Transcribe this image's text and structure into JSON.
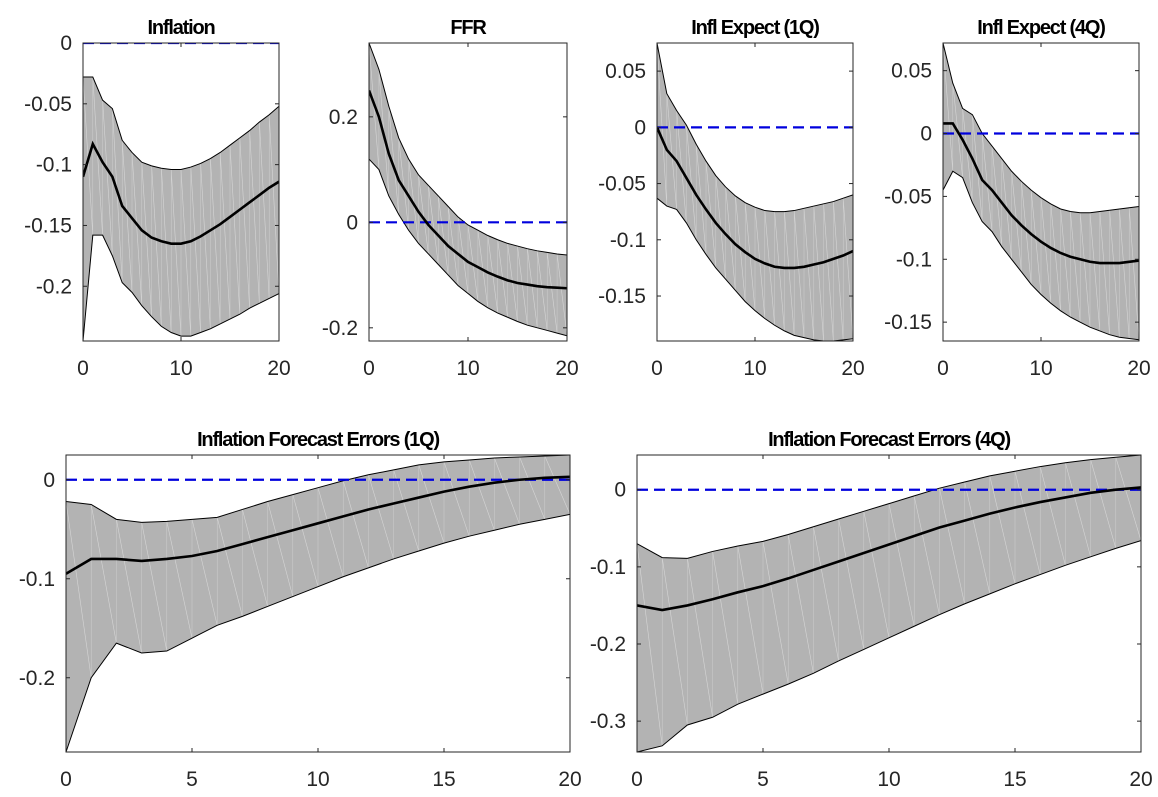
{
  "colors": {
    "band": "#b3b3b3",
    "median": "#000000",
    "zero_line": "#0000dd",
    "axes": "#262626"
  },
  "chart_data": [
    {
      "type": "area",
      "title": "Inflation",
      "xlim": [
        0,
        20
      ],
      "ylim": [
        -0.245,
        0.0
      ],
      "xticks": [
        0,
        10,
        20
      ],
      "xtick_labels": [
        "0",
        "10",
        "20"
      ],
      "yticks": [
        0,
        -0.05,
        -0.1,
        -0.15,
        -0.2
      ],
      "ytick_labels": [
        "0",
        "-0.05",
        "-0.1",
        "-0.15",
        "-0.2"
      ],
      "x": [
        0,
        1,
        2,
        3,
        4,
        5,
        6,
        7,
        8,
        9,
        10,
        11,
        12,
        13,
        14,
        15,
        16,
        17,
        18,
        19,
        20
      ],
      "upper": [
        -0.028,
        -0.028,
        -0.047,
        -0.054,
        -0.08,
        -0.09,
        -0.098,
        -0.101,
        -0.103,
        -0.104,
        -0.104,
        -0.102,
        -0.099,
        -0.095,
        -0.09,
        -0.084,
        -0.078,
        -0.072,
        -0.065,
        -0.059,
        -0.052
      ],
      "median": [
        -0.11,
        -0.083,
        -0.098,
        -0.11,
        -0.134,
        -0.144,
        -0.154,
        -0.16,
        -0.163,
        -0.165,
        -0.165,
        -0.163,
        -0.159,
        -0.154,
        -0.149,
        -0.143,
        -0.137,
        -0.131,
        -0.125,
        -0.119,
        -0.114
      ],
      "lower": [
        -0.245,
        -0.158,
        -0.158,
        -0.175,
        -0.197,
        -0.205,
        -0.216,
        -0.225,
        -0.233,
        -0.238,
        -0.241,
        -0.241,
        -0.238,
        -0.235,
        -0.231,
        -0.227,
        -0.223,
        -0.218,
        -0.214,
        -0.21,
        -0.206
      ],
      "zero_line": 0
    },
    {
      "type": "area",
      "title": "FFR",
      "xlim": [
        0,
        20
      ],
      "ylim": [
        -0.225,
        0.34
      ],
      "xticks": [
        0,
        10,
        20
      ],
      "xtick_labels": [
        "0",
        "10",
        "20"
      ],
      "yticks": [
        0.2,
        0,
        -0.2
      ],
      "ytick_labels": [
        "0.2",
        "0",
        "-0.2"
      ],
      "x": [
        0,
        1,
        2,
        3,
        4,
        5,
        6,
        7,
        8,
        9,
        10,
        11,
        12,
        13,
        14,
        15,
        16,
        17,
        18,
        19,
        20
      ],
      "upper": [
        0.34,
        0.29,
        0.22,
        0.16,
        0.12,
        0.09,
        0.07,
        0.05,
        0.03,
        0.01,
        -0.005,
        -0.015,
        -0.025,
        -0.033,
        -0.04,
        -0.045,
        -0.05,
        -0.054,
        -0.057,
        -0.06,
        -0.062
      ],
      "median": [
        0.25,
        0.2,
        0.13,
        0.08,
        0.05,
        0.02,
        -0.005,
        -0.025,
        -0.045,
        -0.06,
        -0.075,
        -0.085,
        -0.095,
        -0.103,
        -0.11,
        -0.115,
        -0.118,
        -0.121,
        -0.123,
        -0.124,
        -0.125
      ],
      "lower": [
        0.12,
        0.1,
        0.05,
        0.015,
        -0.015,
        -0.04,
        -0.06,
        -0.08,
        -0.1,
        -0.12,
        -0.135,
        -0.15,
        -0.162,
        -0.172,
        -0.18,
        -0.188,
        -0.195,
        -0.2,
        -0.205,
        -0.21,
        -0.215
      ],
      "zero_line": 0
    },
    {
      "type": "area",
      "title": "Infl Expect (1Q)",
      "xlim": [
        0,
        20
      ],
      "ylim": [
        -0.19,
        0.075
      ],
      "xticks": [
        0,
        10,
        20
      ],
      "xtick_labels": [
        "0",
        "10",
        "20"
      ],
      "yticks": [
        0.05,
        0,
        -0.05,
        -0.1,
        -0.15
      ],
      "ytick_labels": [
        "0.05",
        "0",
        "-0.05",
        "-0.1",
        "-0.15"
      ],
      "x": [
        0,
        1,
        2,
        3,
        4,
        5,
        6,
        7,
        8,
        9,
        10,
        11,
        12,
        13,
        14,
        15,
        16,
        17,
        18,
        19,
        20
      ],
      "upper": [
        0.075,
        0.03,
        0.015,
        0.002,
        -0.015,
        -0.03,
        -0.043,
        -0.053,
        -0.061,
        -0.067,
        -0.071,
        -0.074,
        -0.075,
        -0.075,
        -0.074,
        -0.072,
        -0.07,
        -0.068,
        -0.066,
        -0.063,
        -0.06
      ],
      "median": [
        0.0,
        -0.02,
        -0.03,
        -0.045,
        -0.06,
        -0.073,
        -0.085,
        -0.095,
        -0.104,
        -0.111,
        -0.117,
        -0.121,
        -0.124,
        -0.125,
        -0.125,
        -0.124,
        -0.122,
        -0.12,
        -0.117,
        -0.114,
        -0.11
      ],
      "lower": [
        -0.063,
        -0.07,
        -0.073,
        -0.085,
        -0.1,
        -0.113,
        -0.125,
        -0.135,
        -0.145,
        -0.155,
        -0.163,
        -0.17,
        -0.176,
        -0.181,
        -0.185,
        -0.187,
        -0.189,
        -0.19,
        -0.19,
        -0.189,
        -0.188
      ],
      "zero_line": 0
    },
    {
      "type": "area",
      "title": "Infl Expect (4Q)",
      "xlim": [
        0,
        20
      ],
      "ylim": [
        -0.165,
        0.072
      ],
      "xticks": [
        0,
        10,
        20
      ],
      "xtick_labels": [
        "0",
        "10",
        "20"
      ],
      "yticks": [
        0.05,
        0,
        -0.05,
        -0.1,
        -0.15
      ],
      "ytick_labels": [
        "0.05",
        "0",
        "-0.05",
        "-0.1",
        "-0.15"
      ],
      "x": [
        0,
        1,
        2,
        3,
        4,
        5,
        6,
        7,
        8,
        9,
        10,
        11,
        12,
        13,
        14,
        15,
        16,
        17,
        18,
        19,
        20
      ],
      "upper": [
        0.072,
        0.04,
        0.02,
        0.015,
        0.0,
        -0.01,
        -0.02,
        -0.03,
        -0.038,
        -0.045,
        -0.051,
        -0.056,
        -0.06,
        -0.062,
        -0.063,
        -0.063,
        -0.062,
        -0.061,
        -0.06,
        -0.059,
        -0.058
      ],
      "median": [
        0.008,
        0.008,
        -0.005,
        -0.02,
        -0.037,
        -0.045,
        -0.055,
        -0.065,
        -0.073,
        -0.08,
        -0.086,
        -0.091,
        -0.095,
        -0.098,
        -0.1,
        -0.102,
        -0.103,
        -0.103,
        -0.103,
        -0.102,
        -0.101
      ],
      "lower": [
        -0.045,
        -0.03,
        -0.035,
        -0.055,
        -0.07,
        -0.078,
        -0.09,
        -0.1,
        -0.11,
        -0.12,
        -0.128,
        -0.135,
        -0.141,
        -0.146,
        -0.15,
        -0.154,
        -0.157,
        -0.16,
        -0.162,
        -0.163,
        -0.164
      ],
      "zero_line": 0
    },
    {
      "type": "area",
      "title": "Inflation Forecast Errors (1Q)",
      "xlim": [
        0,
        20
      ],
      "ylim": [
        -0.275,
        0.025
      ],
      "xticks": [
        0,
        5,
        10,
        15,
        20
      ],
      "xtick_labels": [
        "0",
        "5",
        "10",
        "15",
        "20"
      ],
      "yticks": [
        0,
        -0.1,
        -0.2
      ],
      "ytick_labels": [
        "0",
        "-0.1",
        "-0.2"
      ],
      "x": [
        0,
        1,
        2,
        3,
        4,
        5,
        6,
        7,
        8,
        9,
        10,
        11,
        12,
        13,
        14,
        15,
        16,
        17,
        18,
        19,
        20
      ],
      "upper": [
        -0.022,
        -0.025,
        -0.04,
        -0.043,
        -0.042,
        -0.04,
        -0.038,
        -0.03,
        -0.022,
        -0.015,
        -0.008,
        -0.001,
        0.005,
        0.01,
        0.015,
        0.018,
        0.02,
        0.022,
        0.023,
        0.024,
        0.025
      ],
      "median": [
        -0.095,
        -0.08,
        -0.08,
        -0.082,
        -0.08,
        -0.077,
        -0.072,
        -0.065,
        -0.058,
        -0.051,
        -0.044,
        -0.037,
        -0.03,
        -0.024,
        -0.018,
        -0.012,
        -0.007,
        -0.003,
        0.0,
        0.002,
        0.003
      ],
      "lower": [
        -0.275,
        -0.2,
        -0.165,
        -0.175,
        -0.173,
        -0.16,
        -0.147,
        -0.138,
        -0.128,
        -0.118,
        -0.108,
        -0.098,
        -0.089,
        -0.08,
        -0.072,
        -0.064,
        -0.057,
        -0.051,
        -0.045,
        -0.04,
        -0.035
      ],
      "zero_line": 0
    },
    {
      "type": "area",
      "title": "Inflation Forecast Errors (4Q)",
      "xlim": [
        0,
        20
      ],
      "ylim": [
        -0.34,
        0.045
      ],
      "xticks": [
        0,
        5,
        10,
        15,
        20
      ],
      "xtick_labels": [
        "0",
        "5",
        "10",
        "15",
        "20"
      ],
      "yticks": [
        0,
        -0.1,
        -0.2,
        -0.3
      ],
      "ytick_labels": [
        "0",
        "-0.1",
        "-0.2",
        "-0.3"
      ],
      "x": [
        0,
        1,
        2,
        3,
        4,
        5,
        6,
        7,
        8,
        9,
        10,
        11,
        12,
        13,
        14,
        15,
        16,
        17,
        18,
        19,
        20
      ],
      "upper": [
        -0.07,
        -0.088,
        -0.089,
        -0.08,
        -0.073,
        -0.067,
        -0.058,
        -0.048,
        -0.038,
        -0.028,
        -0.018,
        -0.008,
        0.002,
        0.01,
        0.018,
        0.024,
        0.03,
        0.035,
        0.039,
        0.042,
        0.045
      ],
      "median": [
        -0.15,
        -0.156,
        -0.15,
        -0.142,
        -0.133,
        -0.125,
        -0.115,
        -0.104,
        -0.093,
        -0.082,
        -0.071,
        -0.06,
        -0.049,
        -0.04,
        -0.031,
        -0.023,
        -0.016,
        -0.01,
        -0.004,
        0.0,
        0.003
      ],
      "lower": [
        -0.34,
        -0.332,
        -0.305,
        -0.295,
        -0.278,
        -0.265,
        -0.252,
        -0.238,
        -0.222,
        -0.207,
        -0.192,
        -0.177,
        -0.162,
        -0.148,
        -0.135,
        -0.122,
        -0.11,
        -0.098,
        -0.087,
        -0.076,
        -0.066
      ],
      "zero_line": 0
    }
  ]
}
